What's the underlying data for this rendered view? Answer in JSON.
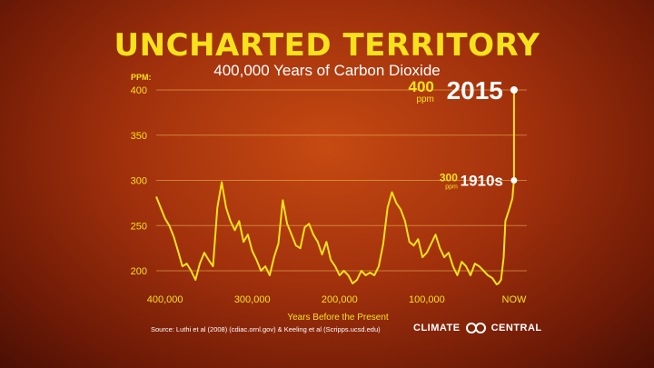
{
  "header": {
    "title": "UNCHARTED TERRITORY",
    "subtitle": "400,000 Years of Carbon Dioxide"
  },
  "chart_data": {
    "type": "line",
    "ylabel": "PPM:",
    "xlabel": "Years Before the Present",
    "xlim": [
      410000,
      0
    ],
    "ylim": [
      180,
      400
    ],
    "yticks": [
      200,
      250,
      300,
      350,
      400
    ],
    "ytick_labels": [
      "200",
      "250",
      "300",
      "350",
      "400"
    ],
    "xticks": [
      400000,
      300000,
      200000,
      100000,
      0
    ],
    "xtick_labels": [
      "400,000",
      "300,000",
      "200,000",
      "100,000",
      "NOW"
    ],
    "grid": true,
    "series": [
      {
        "color": "#f6e21a",
        "x": [
          410000,
          405000,
          400000,
          395000,
          390000,
          385000,
          380000,
          375000,
          370000,
          365000,
          360000,
          355000,
          350000,
          345000,
          340000,
          335000,
          330000,
          325000,
          320000,
          315000,
          310000,
          305000,
          300000,
          295000,
          290000,
          285000,
          280000,
          275000,
          270000,
          265000,
          260000,
          255000,
          250000,
          245000,
          240000,
          235000,
          230000,
          225000,
          220000,
          215000,
          210000,
          205000,
          200000,
          195000,
          190000,
          185000,
          180000,
          175000,
          170000,
          165000,
          160000,
          155000,
          150000,
          145000,
          140000,
          135000,
          130000,
          125000,
          120000,
          115000,
          110000,
          105000,
          100000,
          95000,
          90000,
          85000,
          80000,
          75000,
          70000,
          65000,
          60000,
          55000,
          50000,
          45000,
          40000,
          35000,
          30000,
          25000,
          20000,
          18000,
          15000,
          12000,
          10000,
          5000,
          2000,
          200,
          100
        ],
        "values": [
          282,
          270,
          258,
          250,
          238,
          222,
          205,
          208,
          200,
          190,
          208,
          220,
          212,
          205,
          270,
          298,
          270,
          255,
          245,
          255,
          232,
          240,
          222,
          212,
          200,
          205,
          195,
          215,
          230,
          278,
          252,
          240,
          228,
          225,
          248,
          252,
          240,
          232,
          218,
          232,
          212,
          205,
          195,
          200,
          195,
          186,
          190,
          200,
          195,
          198,
          195,
          205,
          230,
          270,
          287,
          275,
          268,
          255,
          232,
          228,
          235,
          215,
          220,
          230,
          240,
          225,
          215,
          220,
          205,
          195,
          210,
          205,
          195,
          208,
          205,
          200,
          195,
          192,
          185,
          186,
          190,
          215,
          255,
          270,
          280,
          300,
          400
        ]
      }
    ],
    "annotations": [
      {
        "value": "400",
        "unit": "ppm",
        "label": "2015"
      },
      {
        "value": "300",
        "unit": "ppm",
        "label": "1910s"
      }
    ],
    "source": "Source:  Luthi et al (2008) (cdiac.ornl.gov) & Keeling et al (Scripps.ucsd.edu)"
  },
  "branding": {
    "left": "CLIMATE",
    "right": "CENTRAL"
  }
}
